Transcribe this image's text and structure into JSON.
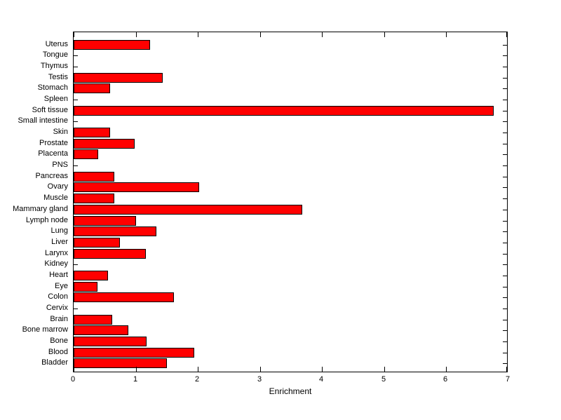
{
  "chart_data": {
    "type": "bar",
    "orientation": "horizontal",
    "title": "",
    "xlabel": "Enrichment",
    "ylabel": "",
    "xlim": [
      0,
      7
    ],
    "xticks": [
      0,
      1,
      2,
      3,
      4,
      5,
      6,
      7
    ],
    "grid": false,
    "legend": null,
    "categories_order": "top-to-bottom",
    "categories": [
      "Uterus",
      "Tongue",
      "Thymus",
      "Testis",
      "Stomach",
      "Spleen",
      "Soft tissue",
      "Small intestine",
      "Skin",
      "Prostate",
      "Placenta",
      "PNS",
      "Pancreas",
      "Ovary",
      "Muscle",
      "Mammary gland",
      "Lymph node",
      "Lung",
      "Liver",
      "Larynx",
      "Kidney",
      "Heart",
      "Eye",
      "Colon",
      "Cervix",
      "Brain",
      "Bone marrow",
      "Bone",
      "Blood",
      "Bladder"
    ],
    "values": [
      1.23,
      0,
      0,
      1.43,
      0.59,
      0,
      6.76,
      0,
      0.59,
      0.98,
      0.4,
      0,
      0.65,
      2.02,
      0.65,
      3.68,
      1.0,
      1.33,
      0.74,
      1.16,
      0,
      0.55,
      0.38,
      1.61,
      0,
      0.62,
      0.88,
      1.17,
      1.94,
      1.5
    ],
    "bar_color": "#ff0000",
    "bar_edge_color": "#000000",
    "axis_color": "#000000",
    "background_color": "#ffffff",
    "tick_direction": "in"
  }
}
